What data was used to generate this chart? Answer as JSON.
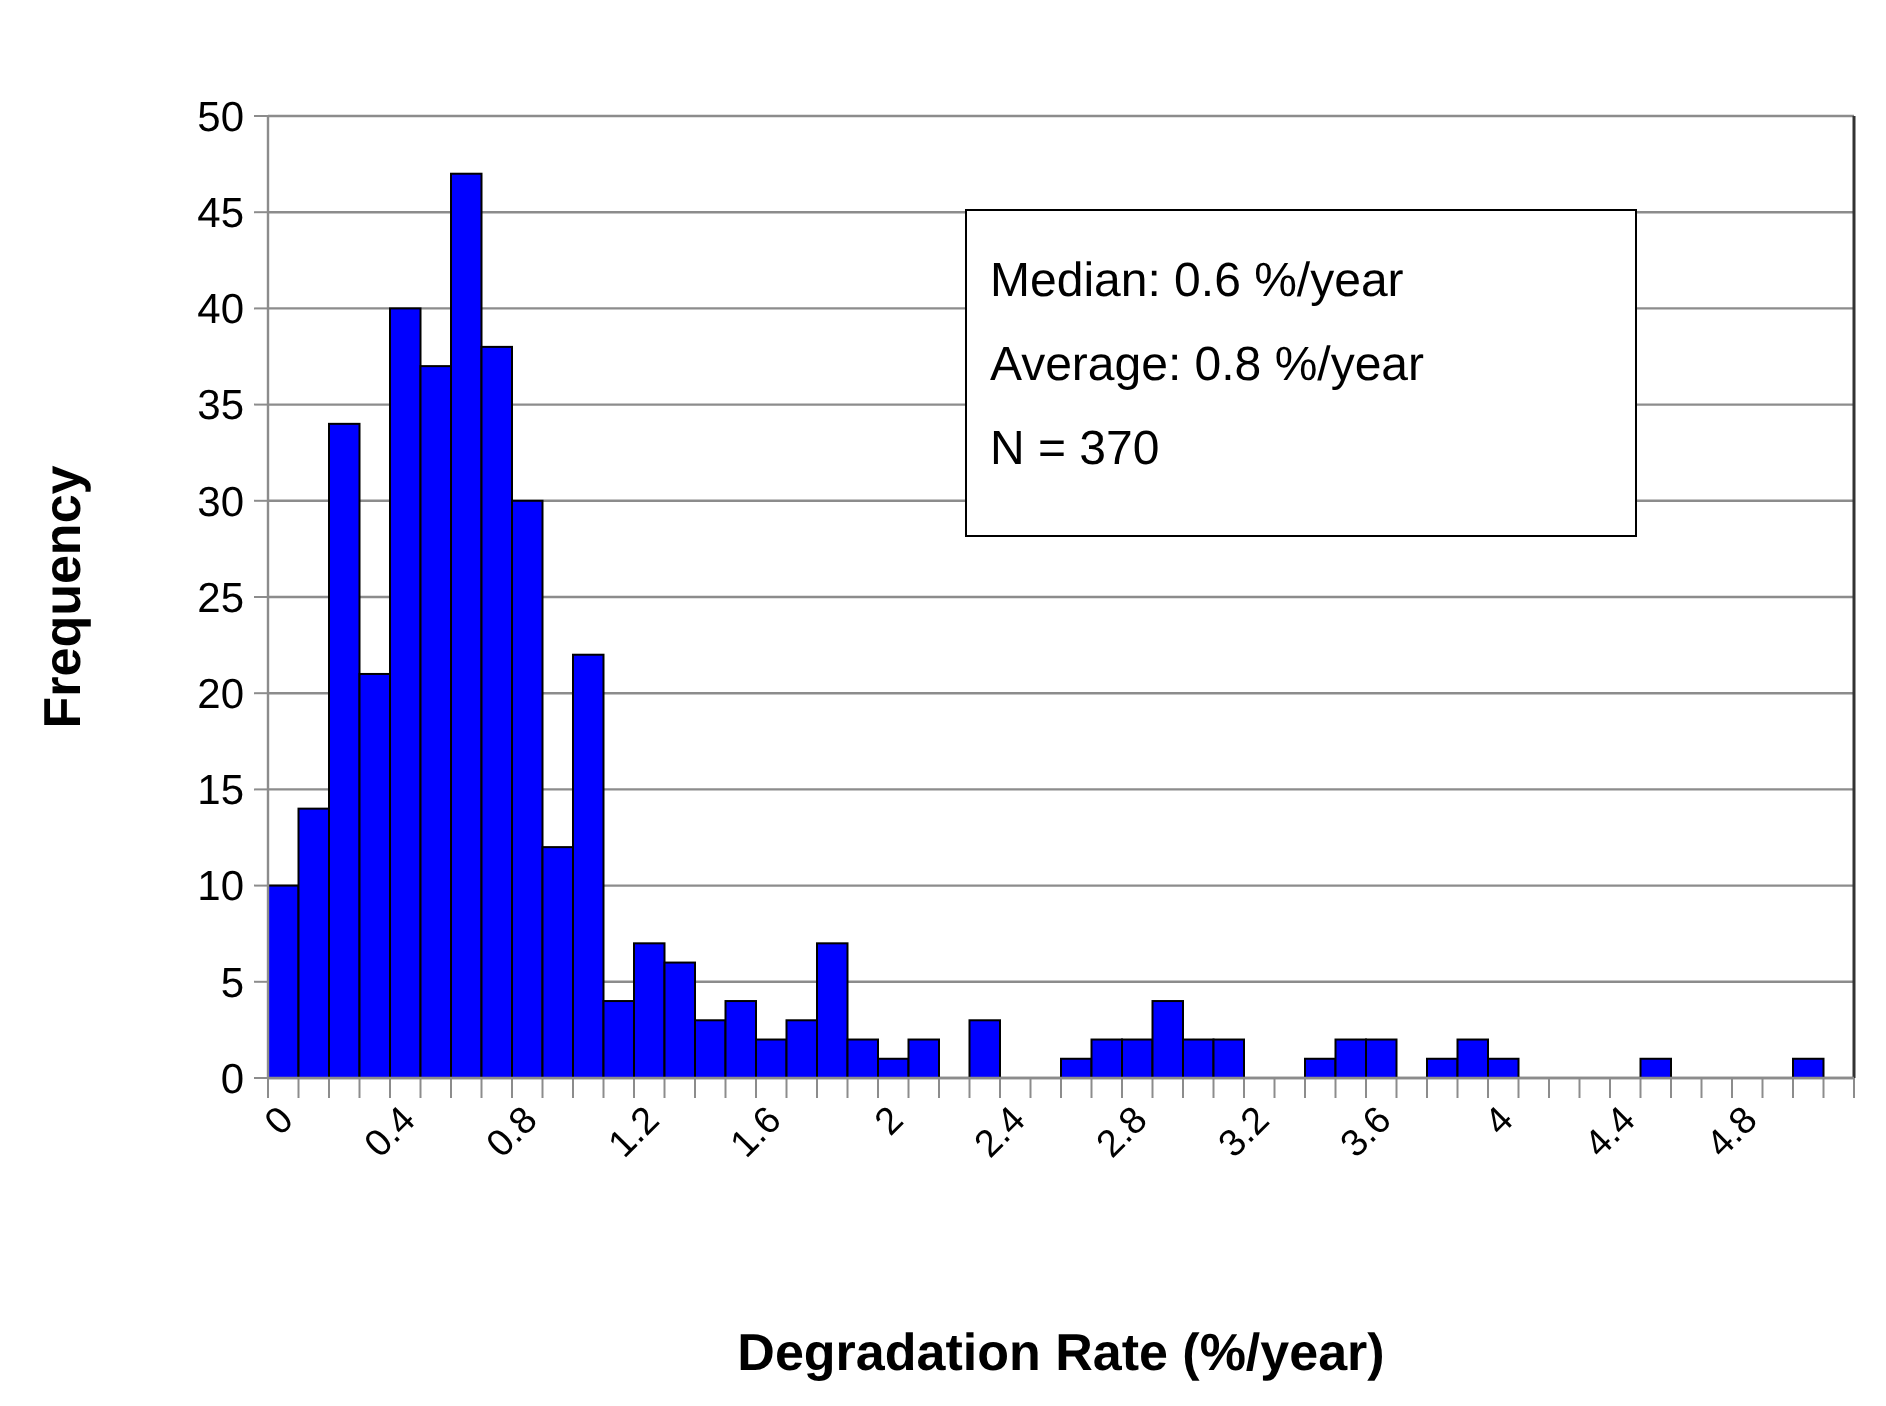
{
  "chart_data": {
    "type": "bar",
    "categories": [
      "0",
      null,
      null,
      null,
      "0.4",
      null,
      null,
      null,
      "0.8",
      null,
      null,
      null,
      "1.2",
      null,
      null,
      null,
      "1.6",
      null,
      null,
      null,
      "2",
      null,
      null,
      null,
      "2.4",
      null,
      null,
      null,
      "2.8",
      null,
      null,
      null,
      "3.2",
      null,
      null,
      null,
      "3.6",
      null,
      null,
      null,
      "4",
      null,
      null,
      null,
      "4.4",
      null,
      null,
      null,
      "4.8",
      null,
      null,
      null
    ],
    "values": [
      10,
      14,
      34,
      21,
      40,
      37,
      47,
      38,
      30,
      12,
      22,
      4,
      7,
      6,
      3,
      4,
      2,
      3,
      7,
      2,
      1,
      2,
      0,
      3,
      0,
      0,
      1,
      2,
      2,
      4,
      2,
      2,
      0,
      0,
      1,
      2,
      2,
      0,
      1,
      2,
      1,
      0,
      0,
      0,
      0,
      1,
      0,
      0,
      0,
      0,
      1,
      0
    ],
    "color": "#0000ff",
    "xlabel": "Degradation Rate (%/year)",
    "ylabel": "Frequency",
    "ylim": [
      0,
      50
    ],
    "yticks": [
      0,
      5,
      10,
      15,
      20,
      25,
      30,
      35,
      40,
      45,
      50
    ],
    "grid": "y",
    "annotations": [
      "Median: 0.6 %/year",
      "Average: 0.8 %/year",
      "N = 370"
    ]
  }
}
